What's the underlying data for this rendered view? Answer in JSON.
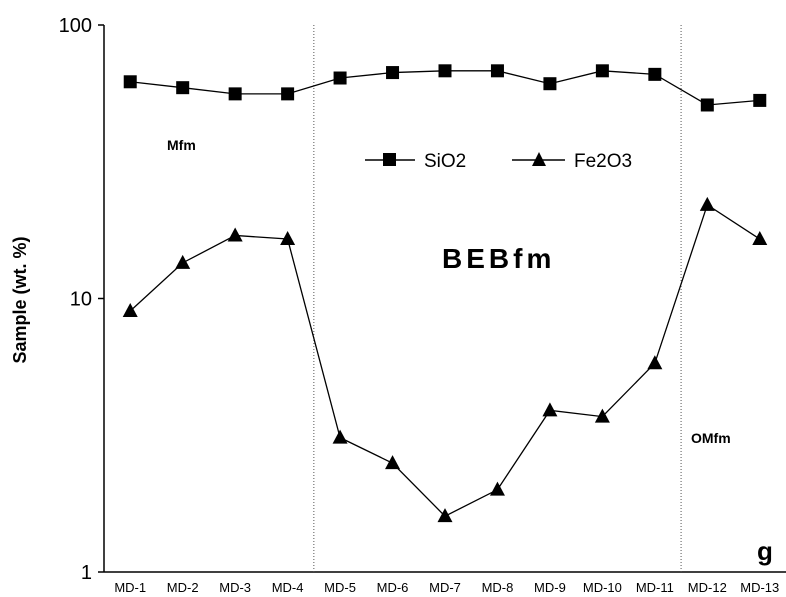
{
  "chart_data": {
    "type": "line",
    "yscale": "log",
    "ylim": [
      1,
      100
    ],
    "ylabel": "Sample (wt. %)",
    "xlabel": "",
    "categories": [
      "MD-1",
      "MD-2",
      "MD-3",
      "MD-4",
      "MD-5",
      "MD-6",
      "MD-7",
      "MD-8",
      "MD-9",
      "MD-10",
      "MD-11",
      "MD-12",
      "MD-13"
    ],
    "y_ticks": [
      "100",
      "10",
      "1"
    ],
    "grid": false,
    "legend_position": "top-center",
    "series": [
      {
        "name": "SiO2",
        "marker": "square",
        "values": [
          62,
          59,
          56,
          56,
          64,
          67,
          68,
          68,
          61,
          68,
          66,
          51,
          53
        ]
      },
      {
        "name": "Fe2O3",
        "marker": "triangle",
        "values": [
          9,
          13.5,
          17,
          16.5,
          3.1,
          2.5,
          1.6,
          2.0,
          3.9,
          3.7,
          5.8,
          22,
          16.5
        ]
      }
    ],
    "divider_after_categories": [
      "MD-4",
      "MD-11"
    ],
    "annotations": {
      "left": "Mfm",
      "middle": "BEBfm",
      "right": "OMfm"
    },
    "panel_label": "g"
  }
}
